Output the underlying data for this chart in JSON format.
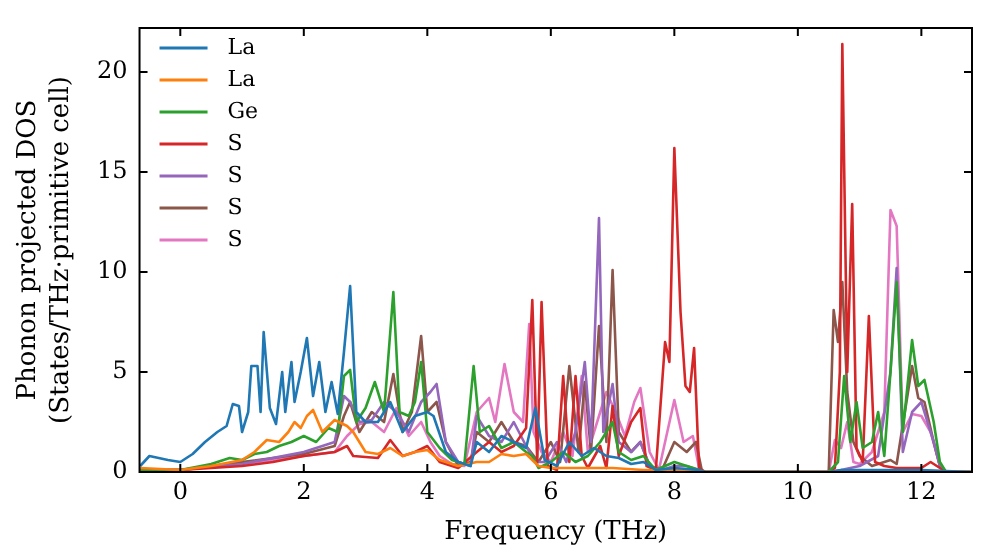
{
  "chart_data": {
    "type": "line",
    "xlabel": "Frequency (THz)",
    "ylabel": "Phonon projected DOS\n(States/THz·primitive cell)",
    "xlim": [
      -0.66,
      12.82
    ],
    "ylim": [
      0,
      22.2
    ],
    "xticks": [
      0,
      2,
      4,
      6,
      8,
      10,
      12
    ],
    "yticks": [
      0,
      5,
      10,
      15,
      20
    ],
    "grid": false,
    "legend": "top left",
    "marker": "none",
    "line_style": "solid",
    "series": [
      {
        "name": "La",
        "color": "#1f77b4",
        "x": [
          -0.65,
          -0.5,
          -0.2,
          0,
          0.2,
          0.4,
          0.6,
          0.75,
          0.85,
          0.95,
          1.0,
          1.1,
          1.15,
          1.25,
          1.3,
          1.35,
          1.45,
          1.55,
          1.65,
          1.7,
          1.8,
          1.85,
          1.95,
          2.05,
          2.15,
          2.25,
          2.35,
          2.45,
          2.55,
          2.65,
          2.75,
          2.85,
          3.0,
          3.2,
          3.4,
          3.6,
          3.8,
          4.0,
          4.1,
          4.3,
          4.5,
          4.7,
          4.8,
          5.0,
          5.2,
          5.4,
          5.6,
          5.75,
          5.9,
          6.1,
          6.3,
          6.5,
          6.7,
          6.9,
          7.1,
          7.3,
          7.5,
          7.7,
          8.0,
          8.4,
          8.5,
          10.5,
          10.7,
          11,
          12,
          12.8
        ],
        "values": [
          0.3,
          0.8,
          0.6,
          0.5,
          0.9,
          1.5,
          2.0,
          2.3,
          3.4,
          3.3,
          2.0,
          3.0,
          5.3,
          5.3,
          3.0,
          7.0,
          3.2,
          2.4,
          5.0,
          3.0,
          5.5,
          3.5,
          5.0,
          6.7,
          3.8,
          5.5,
          3.0,
          4.5,
          2.9,
          6.0,
          9.3,
          3.0,
          2.5,
          2.5,
          3.5,
          2.0,
          2.8,
          3.0,
          2.8,
          1.0,
          0.5,
          0.3,
          1.5,
          1.0,
          1.8,
          1.5,
          1.2,
          3.2,
          0.6,
          0.3,
          1.5,
          0.8,
          1.2,
          0.8,
          0.7,
          0.4,
          0.5,
          0.1,
          0.2,
          0.1,
          0,
          0,
          0.1,
          0.1,
          0.1,
          0
        ]
      },
      {
        "name": "La",
        "color": "#ff7f0e",
        "x": [
          -0.65,
          0,
          0.5,
          1.0,
          1.2,
          1.4,
          1.6,
          1.75,
          1.85,
          1.95,
          2.05,
          2.15,
          2.3,
          2.5,
          2.7,
          2.8,
          3.0,
          3.2,
          3.4,
          3.6,
          3.8,
          4.0,
          4.2,
          4.5,
          4.8,
          5.0,
          5.2,
          5.4,
          5.6,
          5.8,
          6.0,
          6.5,
          7.0,
          7.5,
          8.0,
          8.5,
          12.8
        ],
        "values": [
          0.2,
          0.1,
          0.3,
          0.6,
          1.0,
          1.6,
          1.5,
          2.0,
          2.5,
          2.2,
          2.8,
          3.1,
          2.0,
          2.6,
          2.3,
          2.0,
          1.0,
          0.9,
          1.2,
          0.8,
          1.0,
          1.1,
          0.6,
          0.3,
          0.5,
          0.5,
          0.9,
          0.8,
          0.9,
          0.3,
          0.2,
          0.2,
          0.2,
          0.1,
          0.1,
          0,
          0
        ]
      },
      {
        "name": "Ge",
        "color": "#2ca02c",
        "x": [
          -0.65,
          0,
          0.5,
          0.8,
          1.0,
          1.2,
          1.4,
          1.6,
          1.8,
          2.0,
          2.2,
          2.4,
          2.55,
          2.65,
          2.75,
          2.85,
          3.0,
          3.15,
          3.3,
          3.45,
          3.55,
          3.7,
          3.8,
          3.9,
          4.0,
          4.2,
          4.4,
          4.6,
          4.75,
          4.85,
          5.0,
          5.2,
          5.4,
          5.6,
          5.7,
          5.8,
          6.0,
          6.2,
          6.4,
          6.6,
          6.8,
          7.0,
          7.1,
          7.3,
          7.5,
          7.7,
          8.0,
          8.2,
          8.4,
          8.5,
          10.5,
          10.65,
          10.75,
          10.85,
          10.95,
          11.05,
          11.2,
          11.3,
          11.4,
          11.5,
          11.6,
          11.7,
          11.85,
          11.95,
          12.05,
          12.2,
          12.3,
          12.4,
          12.8
        ],
        "values": [
          0.1,
          0.1,
          0.4,
          0.7,
          0.6,
          0.9,
          1.0,
          1.3,
          1.5,
          1.8,
          1.5,
          2.2,
          2.0,
          4.8,
          5.1,
          2.5,
          3.2,
          4.5,
          3.0,
          9.0,
          3.0,
          2.8,
          3.5,
          5.5,
          2.0,
          1.2,
          0.6,
          0.4,
          5.3,
          2.0,
          2.3,
          1.2,
          1.5,
          1.0,
          0.8,
          0.2,
          0.5,
          1.0,
          0.5,
          0.8,
          1.5,
          2.5,
          1.0,
          0.6,
          0.8,
          0.1,
          0.5,
          0.3,
          0.1,
          0,
          0,
          0.5,
          4.8,
          1.5,
          3.5,
          1.2,
          1.5,
          3.0,
          0.8,
          5.0,
          9.5,
          2.0,
          6.6,
          4.3,
          4.6,
          2.5,
          0.5,
          0,
          0
        ]
      },
      {
        "name": "S",
        "color": "#d62728",
        "x": [
          -0.65,
          0,
          1.0,
          1.5,
          2.0,
          2.5,
          2.7,
          2.8,
          3.2,
          3.4,
          3.6,
          3.8,
          4.0,
          4.2,
          4.5,
          4.8,
          5.0,
          5.2,
          5.4,
          5.6,
          5.7,
          5.78,
          5.85,
          5.95,
          6.1,
          6.2,
          6.3,
          6.4,
          6.5,
          6.6,
          6.8,
          6.9,
          7.0,
          7.1,
          7.3,
          7.45,
          7.55,
          7.7,
          7.85,
          7.92,
          8.0,
          8.1,
          8.18,
          8.25,
          8.32,
          8.4,
          8.5,
          10.5,
          10.6,
          10.68,
          10.72,
          10.8,
          10.88,
          10.95,
          11.05,
          11.15,
          11.25,
          11.4,
          11.6,
          12.0,
          12.15,
          12.3,
          12.4,
          12.8
        ],
        "values": [
          0.1,
          0.1,
          0.3,
          0.5,
          0.8,
          1.0,
          1.3,
          0.8,
          0.7,
          1.6,
          0.8,
          1.0,
          1.3,
          0.5,
          0.2,
          1.0,
          1.5,
          1.0,
          1.3,
          2.2,
          8.6,
          0.5,
          8.5,
          0.3,
          0.1,
          4.8,
          0.5,
          4.8,
          0.8,
          0.2,
          1.3,
          0.2,
          3.3,
          0.8,
          2.5,
          3.2,
          0.3,
          0.1,
          6.5,
          5.5,
          16.2,
          8.0,
          4.3,
          4.0,
          6.2,
          0.2,
          0,
          0,
          0.2,
          5.0,
          21.4,
          5.0,
          13.4,
          1.2,
          0.5,
          7.8,
          0.5,
          0.3,
          0.2,
          0.2,
          0.5,
          0.2,
          0,
          0
        ]
      },
      {
        "name": "S",
        "color": "#9467bd",
        "x": [
          -0.65,
          0,
          1,
          2,
          2.5,
          2.65,
          2.75,
          2.9,
          3.1,
          3.3,
          3.5,
          3.7,
          3.9,
          4.05,
          4.15,
          4.3,
          4.5,
          4.7,
          4.8,
          5.0,
          5.2,
          5.4,
          5.6,
          5.75,
          5.9,
          6.1,
          6.25,
          6.4,
          6.55,
          6.65,
          6.78,
          6.85,
          7.0,
          7.1,
          7.3,
          7.45,
          7.6,
          7.8,
          8.0,
          8.2,
          8.4,
          8.5,
          10.5,
          10.7,
          11.0,
          11.3,
          11.5,
          11.6,
          11.7,
          11.85,
          12.0,
          12.2,
          12.3,
          12.4,
          12.8
        ],
        "values": [
          0.1,
          0.1,
          0.4,
          1.0,
          1.5,
          3.8,
          3.5,
          2.5,
          2.6,
          3.5,
          3.0,
          2.0,
          3.5,
          4.0,
          4.4,
          1.5,
          0.5,
          0.3,
          2.8,
          1.8,
          1.5,
          2.5,
          1.3,
          0.5,
          0.5,
          1.5,
          0.5,
          2.0,
          5.5,
          1.5,
          12.7,
          2.0,
          4.4,
          1.5,
          1.0,
          1.5,
          0.3,
          0.1,
          0.3,
          0.3,
          0.1,
          0,
          0,
          0.1,
          0.3,
          0.8,
          5.0,
          10.2,
          1.0,
          3.0,
          3.5,
          1.5,
          0.3,
          0,
          0
        ]
      },
      {
        "name": "S",
        "color": "#8c564b",
        "x": [
          -0.65,
          0,
          1,
          2,
          2.5,
          2.65,
          2.75,
          2.9,
          3.1,
          3.3,
          3.45,
          3.6,
          3.75,
          3.9,
          4.0,
          4.15,
          4.3,
          4.5,
          4.7,
          4.8,
          5.0,
          5.2,
          5.4,
          5.6,
          5.8,
          6.0,
          6.15,
          6.3,
          6.45,
          6.55,
          6.65,
          6.78,
          6.9,
          7.0,
          7.1,
          7.3,
          7.45,
          7.6,
          7.8,
          8.0,
          8.2,
          8.35,
          8.45,
          10.5,
          10.58,
          10.65,
          10.72,
          10.8,
          10.9,
          11.0,
          11.2,
          11.5,
          11.6,
          11.85,
          11.95,
          12.05,
          12.2,
          12.3,
          12.4,
          12.8
        ],
        "values": [
          0.1,
          0.1,
          0.5,
          0.9,
          1.3,
          2.8,
          3.5,
          2.0,
          3.0,
          2.5,
          4.9,
          2.0,
          3.0,
          6.8,
          3.0,
          3.5,
          1.5,
          0.3,
          0.5,
          2.0,
          1.5,
          2.5,
          1.5,
          1.3,
          0.5,
          1.5,
          0.5,
          5.3,
          1.0,
          4.5,
          1.0,
          7.3,
          1.5,
          10.1,
          2.0,
          1.0,
          1.5,
          0.3,
          0.1,
          1.5,
          1.0,
          1.5,
          0,
          0,
          8.1,
          6.5,
          9.5,
          4.0,
          1.5,
          0.8,
          0.3,
          0.6,
          0.4,
          5.3,
          3.7,
          3.5,
          1.5,
          0.3,
          0,
          0
        ]
      },
      {
        "name": "S",
        "color": "#e377c2",
        "x": [
          -0.65,
          0,
          1,
          2,
          2.5,
          2.7,
          2.9,
          3.1,
          3.3,
          3.5,
          3.7,
          3.9,
          4.05,
          4.2,
          4.4,
          4.6,
          4.8,
          5.0,
          5.1,
          5.25,
          5.4,
          5.55,
          5.65,
          5.72,
          5.85,
          6.0,
          6.2,
          6.35,
          6.5,
          6.6,
          6.75,
          6.9,
          7.05,
          7.2,
          7.35,
          7.45,
          7.6,
          7.75,
          8.0,
          8.15,
          8.3,
          8.4,
          8.5,
          10.5,
          10.6,
          10.7,
          10.8,
          10.9,
          11.0,
          11.2,
          11.4,
          11.5,
          11.6,
          11.7,
          11.85,
          12.0,
          12.15,
          12.3,
          12.4,
          12.8
        ],
        "values": [
          0.1,
          0.1,
          0.4,
          0.8,
          1.0,
          1.8,
          2.4,
          2.5,
          2.0,
          3.2,
          1.8,
          2.5,
          1.5,
          0.8,
          0.4,
          0.3,
          3.0,
          3.7,
          2.5,
          5.4,
          3.0,
          2.5,
          7.4,
          2.0,
          1.0,
          0.5,
          2.0,
          0.8,
          4.8,
          1.0,
          2.5,
          4.0,
          3.0,
          1.8,
          3.5,
          4.2,
          1.0,
          0.1,
          3.6,
          1.5,
          1.8,
          0.2,
          0,
          0,
          1.6,
          1.2,
          2.5,
          0.5,
          0.4,
          1.0,
          3.0,
          13.1,
          12.3,
          2.0,
          2.9,
          2.8,
          2.0,
          0.3,
          0,
          0
        ]
      }
    ]
  }
}
